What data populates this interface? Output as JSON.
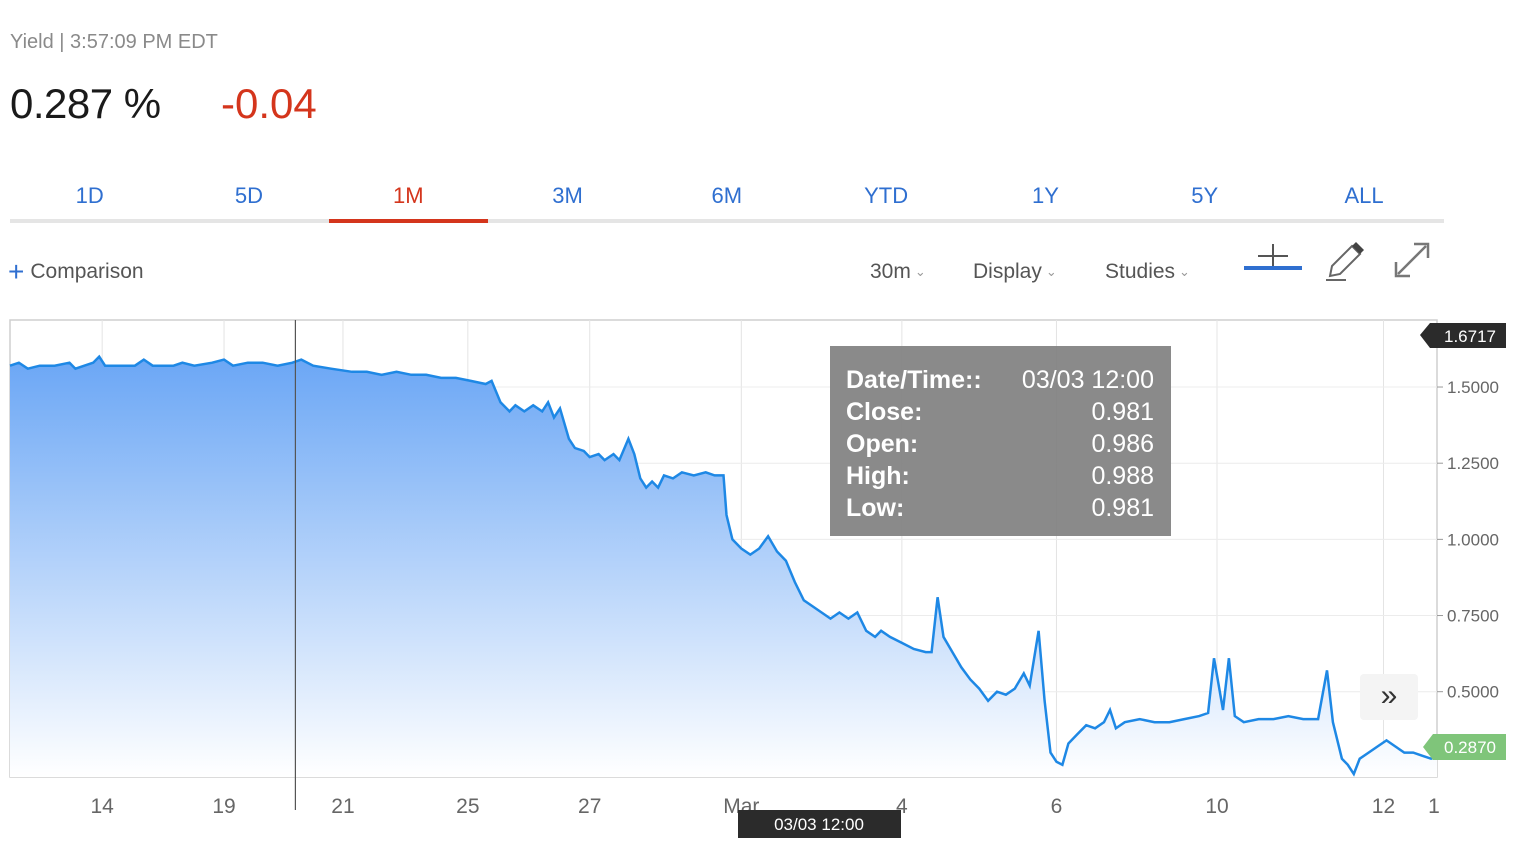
{
  "header": {
    "label": "Yield | 3:57:09 PM EDT",
    "price": "0.287 %",
    "change": "-0.04"
  },
  "tabs": [
    {
      "label": "1D",
      "active": false
    },
    {
      "label": "5D",
      "active": false
    },
    {
      "label": "1M",
      "active": true
    },
    {
      "label": "3M",
      "active": false
    },
    {
      "label": "6M",
      "active": false
    },
    {
      "label": "YTD",
      "active": false
    },
    {
      "label": "1Y",
      "active": false
    },
    {
      "label": "5Y",
      "active": false
    },
    {
      "label": "ALL",
      "active": false
    }
  ],
  "toolbar": {
    "comparison": "Comparison",
    "interval": "30m",
    "display": "Display",
    "studies": "Studies"
  },
  "tooltip": {
    "rows": [
      {
        "label": "Date/Time::",
        "value": "03/03 12:00"
      },
      {
        "label": "Close:",
        "value": "0.981"
      },
      {
        "label": "Open:",
        "value": "0.986"
      },
      {
        "label": "High:",
        "value": "0.988"
      },
      {
        "label": "Low:",
        "value": "0.981"
      }
    ]
  },
  "crosshair_label": "03/03 12:00",
  "colors": {
    "line": "#1e88e5",
    "fill_top": "#6aa6f5",
    "fill_bottom": "#ffffff",
    "accent_red": "#d4351c",
    "tab_blue": "#2f6fd0",
    "current_badge": "#7fc57a"
  },
  "chart_data": {
    "type": "area",
    "y_ticks": [
      "1.5000",
      "1.2500",
      "1.0000",
      "0.7500",
      "0.5000"
    ],
    "ylim": [
      0.22,
      1.72
    ],
    "x_ticks": [
      "14",
      "19",
      "21",
      "25",
      "27",
      "Mar",
      "4",
      "6",
      "10",
      "12",
      "1"
    ],
    "max_label": "1.6717",
    "current_label": "0.2870",
    "grid": true,
    "crosshair_x": 9.6,
    "series": [
      {
        "points": [
          [
            0,
            1.57
          ],
          [
            0.3,
            1.58
          ],
          [
            0.6,
            1.56
          ],
          [
            1.0,
            1.57
          ],
          [
            1.5,
            1.57
          ],
          [
            2.0,
            1.58
          ],
          [
            2.2,
            1.56
          ],
          [
            2.8,
            1.58
          ],
          [
            3.0,
            1.6
          ],
          [
            3.2,
            1.57
          ],
          [
            3.8,
            1.57
          ],
          [
            4.2,
            1.57
          ],
          [
            4.5,
            1.59
          ],
          [
            4.8,
            1.57
          ],
          [
            5.5,
            1.57
          ],
          [
            5.8,
            1.58
          ],
          [
            6.2,
            1.57
          ],
          [
            6.8,
            1.58
          ],
          [
            7.2,
            1.59
          ],
          [
            7.5,
            1.57
          ],
          [
            8.0,
            1.58
          ],
          [
            8.5,
            1.58
          ],
          [
            9.0,
            1.57
          ],
          [
            9.5,
            1.58
          ],
          [
            9.8,
            1.59
          ],
          [
            10.2,
            1.57
          ],
          [
            10.8,
            1.56
          ],
          [
            11.5,
            1.55
          ],
          [
            12.0,
            1.55
          ],
          [
            12.5,
            1.54
          ],
          [
            13.0,
            1.55
          ],
          [
            13.5,
            1.54
          ],
          [
            14.0,
            1.54
          ],
          [
            14.5,
            1.53
          ],
          [
            15.0,
            1.53
          ],
          [
            15.5,
            1.52
          ],
          [
            16.0,
            1.51
          ],
          [
            16.2,
            1.52
          ],
          [
            16.5,
            1.45
          ],
          [
            16.8,
            1.42
          ],
          [
            17.0,
            1.44
          ],
          [
            17.3,
            1.42
          ],
          [
            17.6,
            1.44
          ],
          [
            17.9,
            1.42
          ],
          [
            18.1,
            1.45
          ],
          [
            18.3,
            1.4
          ],
          [
            18.5,
            1.43
          ],
          [
            18.8,
            1.33
          ],
          [
            19.0,
            1.3
          ],
          [
            19.3,
            1.29
          ],
          [
            19.5,
            1.27
          ],
          [
            19.8,
            1.28
          ],
          [
            20.0,
            1.26
          ],
          [
            20.3,
            1.28
          ],
          [
            20.5,
            1.26
          ],
          [
            20.8,
            1.33
          ],
          [
            21.0,
            1.28
          ],
          [
            21.2,
            1.2
          ],
          [
            21.4,
            1.17
          ],
          [
            21.6,
            1.19
          ],
          [
            21.8,
            1.17
          ],
          [
            22.0,
            1.21
          ],
          [
            22.3,
            1.2
          ],
          [
            22.6,
            1.22
          ],
          [
            23.0,
            1.21
          ],
          [
            23.4,
            1.22
          ],
          [
            23.7,
            1.21
          ],
          [
            24.0,
            1.21
          ],
          [
            24.1,
            1.08
          ],
          [
            24.3,
            1.0
          ],
          [
            24.6,
            0.97
          ],
          [
            24.9,
            0.95
          ],
          [
            25.2,
            0.97
          ],
          [
            25.5,
            1.01
          ],
          [
            25.8,
            0.96
          ],
          [
            26.1,
            0.93
          ],
          [
            26.4,
            0.86
          ],
          [
            26.7,
            0.8
          ],
          [
            27.0,
            0.78
          ],
          [
            27.3,
            0.76
          ],
          [
            27.6,
            0.74
          ],
          [
            27.9,
            0.76
          ],
          [
            28.2,
            0.74
          ],
          [
            28.5,
            0.76
          ],
          [
            28.8,
            0.7
          ],
          [
            29.1,
            0.68
          ],
          [
            29.3,
            0.7
          ],
          [
            29.6,
            0.68
          ],
          [
            30.0,
            0.66
          ],
          [
            30.4,
            0.64
          ],
          [
            30.8,
            0.63
          ],
          [
            31.0,
            0.63
          ],
          [
            31.2,
            0.81
          ],
          [
            31.4,
            0.68
          ],
          [
            31.7,
            0.63
          ],
          [
            32.0,
            0.58
          ],
          [
            32.3,
            0.54
          ],
          [
            32.6,
            0.51
          ],
          [
            32.9,
            0.47
          ],
          [
            33.2,
            0.5
          ],
          [
            33.5,
            0.49
          ],
          [
            33.8,
            0.51
          ],
          [
            34.1,
            0.56
          ],
          [
            34.3,
            0.52
          ],
          [
            34.6,
            0.7
          ],
          [
            34.8,
            0.47
          ],
          [
            35.0,
            0.3
          ],
          [
            35.2,
            0.27
          ],
          [
            35.4,
            0.26
          ],
          [
            35.6,
            0.33
          ],
          [
            35.9,
            0.36
          ],
          [
            36.2,
            0.39
          ],
          [
            36.5,
            0.38
          ],
          [
            36.8,
            0.4
          ],
          [
            37.0,
            0.44
          ],
          [
            37.2,
            0.38
          ],
          [
            37.5,
            0.4
          ],
          [
            38.0,
            0.41
          ],
          [
            38.5,
            0.4
          ],
          [
            39.0,
            0.4
          ],
          [
            39.5,
            0.41
          ],
          [
            40.0,
            0.42
          ],
          [
            40.3,
            0.43
          ],
          [
            40.5,
            0.61
          ],
          [
            40.8,
            0.44
          ],
          [
            41.0,
            0.61
          ],
          [
            41.2,
            0.42
          ],
          [
            41.5,
            0.4
          ],
          [
            42.0,
            0.41
          ],
          [
            42.5,
            0.41
          ],
          [
            43.0,
            0.42
          ],
          [
            43.5,
            0.41
          ],
          [
            44.0,
            0.41
          ],
          [
            44.3,
            0.57
          ],
          [
            44.5,
            0.4
          ],
          [
            44.8,
            0.28
          ],
          [
            45.0,
            0.26
          ],
          [
            45.2,
            0.23
          ],
          [
            45.4,
            0.28
          ],
          [
            45.7,
            0.3
          ],
          [
            46.0,
            0.32
          ],
          [
            46.3,
            0.34
          ],
          [
            46.6,
            0.32
          ],
          [
            46.9,
            0.3
          ],
          [
            47.2,
            0.3
          ],
          [
            47.5,
            0.29
          ],
          [
            47.8,
            0.28
          ],
          [
            48.0,
            0.287
          ]
        ]
      }
    ]
  }
}
